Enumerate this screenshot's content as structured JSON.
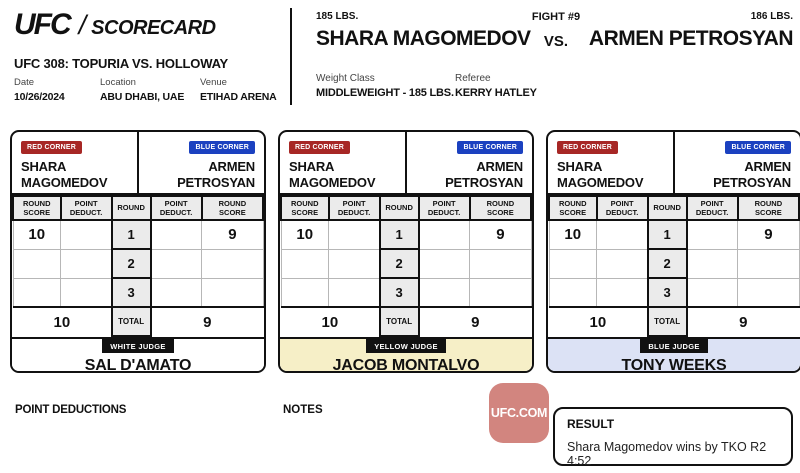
{
  "header": {
    "logo": {
      "ufc": "UFC",
      "separator": "/",
      "scorecard": "SCORECARD"
    },
    "event_title": "UFC 308: TOPURIA VS. HOLLOWAY",
    "meta": [
      {
        "label": "Date",
        "value": "10/26/2024"
      },
      {
        "label": "Location",
        "value": "ABU DHABI, UAE"
      },
      {
        "label": "Venue",
        "value": "ETIHAD ARENA"
      }
    ],
    "red_fighter": {
      "weight": "185 LBS.",
      "name": "SHARA MAGOMEDOV"
    },
    "fight_number": "FIGHT #9",
    "vs": "VS.",
    "blue_fighter": {
      "weight": "186 LBS.",
      "name": "ARMEN PETROSYAN"
    },
    "weight_class": {
      "label": "Weight Class",
      "value": "MIDDLEWEIGHT - 185 LBS."
    },
    "referee": {
      "label": "Referee",
      "value": "KERRY HATLEY"
    }
  },
  "corners": {
    "red": {
      "label": "RED CORNER",
      "line1": "SHARA",
      "line2": "MAGOMEDOV"
    },
    "blue": {
      "label": "BLUE CORNER",
      "line1": "ARMEN",
      "line2": "PETROSYAN"
    }
  },
  "scorecard": {
    "col_headers": [
      "ROUND SCORE",
      "POINT DEDUCT.",
      "ROUND",
      "POINT DEDUCT.",
      "ROUND SCORE"
    ]
  },
  "judges": [
    {
      "badge": "WHITE JUDGE",
      "name": "SAL D'AMATO",
      "bg": "#ffffff",
      "rounds": [
        {
          "round": "1",
          "red_score": "10",
          "red_deduct": "",
          "blue_deduct": "",
          "blue_score": "9"
        },
        {
          "round": "2",
          "red_score": "",
          "red_deduct": "",
          "blue_deduct": "",
          "blue_score": ""
        },
        {
          "round": "3",
          "red_score": "",
          "red_deduct": "",
          "blue_deduct": "",
          "blue_score": ""
        }
      ],
      "total": {
        "label": "TOTAL",
        "red": "10",
        "blue": "9"
      }
    },
    {
      "badge": "YELLOW JUDGE",
      "name": "JACOB MONTALVO",
      "bg": "#f6efc7",
      "rounds": [
        {
          "round": "1",
          "red_score": "10",
          "red_deduct": "",
          "blue_deduct": "",
          "blue_score": "9"
        },
        {
          "round": "2",
          "red_score": "",
          "red_deduct": "",
          "blue_deduct": "",
          "blue_score": ""
        },
        {
          "round": "3",
          "red_score": "",
          "red_deduct": "",
          "blue_deduct": "",
          "blue_score": ""
        }
      ],
      "total": {
        "label": "TOTAL",
        "red": "10",
        "blue": "9"
      }
    },
    {
      "badge": "BLUE JUDGE",
      "name": "TONY WEEKS",
      "bg": "#dce2f5",
      "rounds": [
        {
          "round": "1",
          "red_score": "10",
          "red_deduct": "",
          "blue_deduct": "",
          "blue_score": "9"
        },
        {
          "round": "2",
          "red_score": "",
          "red_deduct": "",
          "blue_deduct": "",
          "blue_score": ""
        },
        {
          "round": "3",
          "red_score": "",
          "red_deduct": "",
          "blue_deduct": "",
          "blue_score": ""
        }
      ],
      "total": {
        "label": "TOTAL",
        "red": "10",
        "blue": "9"
      }
    }
  ],
  "footer": {
    "point_deductions_label": "POINT DEDUCTIONS",
    "notes_label": "NOTES",
    "watermark": "UFC.COM",
    "result": {
      "label": "RESULT",
      "text": "Shara Magomedov wins by TKO R2 4:52"
    }
  },
  "colors": {
    "red_corner": "#a72725",
    "blue_corner": "#1b41c0",
    "watermark_bg": "#d2857f",
    "yellow_judge_bg": "#f6efc7",
    "blue_judge_bg": "#dce2f5"
  }
}
